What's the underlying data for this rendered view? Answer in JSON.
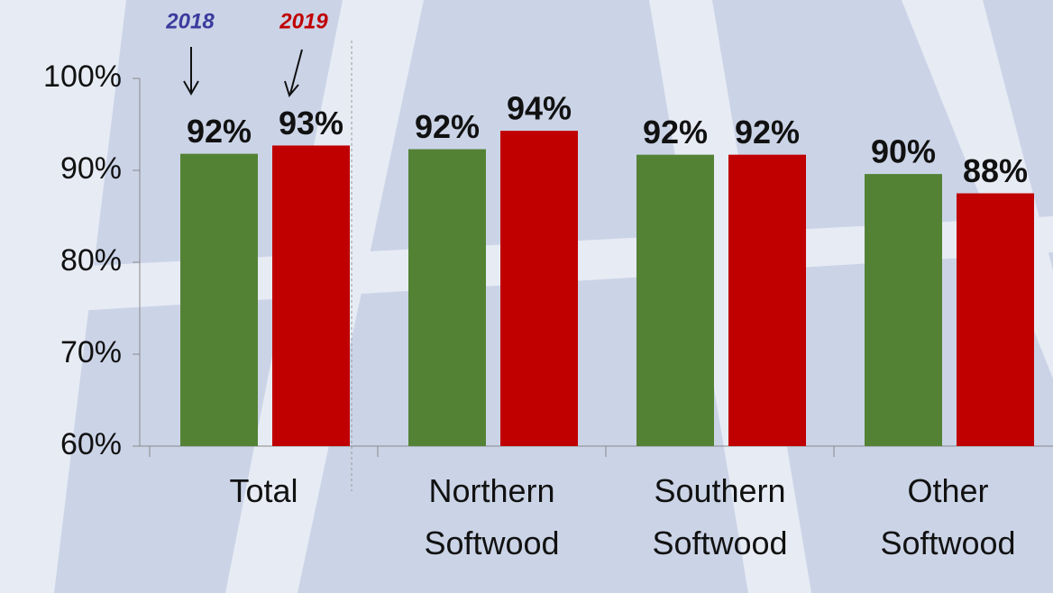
{
  "chart_data": {
    "type": "bar",
    "categories": [
      "Total",
      "Northern Softwood",
      "Southern Softwood",
      "Other Softwood"
    ],
    "series": [
      {
        "name": "2018",
        "color": "#548235",
        "label_color": "#3b3b9e",
        "values": [
          91.8,
          92.3,
          91.7,
          89.6
        ],
        "value_labels": [
          "92%",
          "92%",
          "92%",
          "90%"
        ]
      },
      {
        "name": "2019",
        "color": "#c00000",
        "label_color": "#c00000",
        "values": [
          92.7,
          94.3,
          91.7,
          87.5
        ],
        "value_labels": [
          "93%",
          "94%",
          "92%",
          "88%"
        ]
      }
    ],
    "ylim": [
      60,
      100
    ],
    "yticks": [
      {
        "value": 60,
        "label": "60%"
      },
      {
        "value": 70,
        "label": "70%"
      },
      {
        "value": 80,
        "label": "80%"
      },
      {
        "value": 90,
        "label": "90%"
      },
      {
        "value": 100,
        "label": "100%"
      }
    ]
  }
}
